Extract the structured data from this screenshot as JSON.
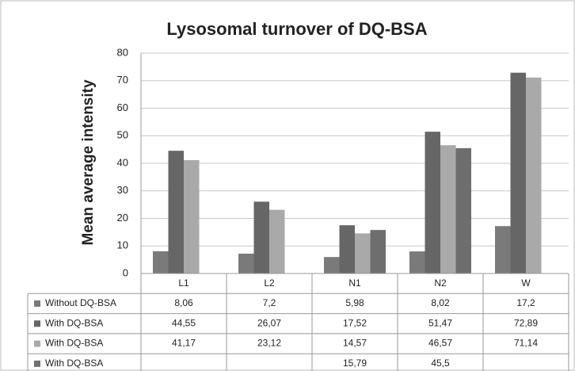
{
  "chart_data": {
    "type": "bar",
    "title": "Lysosomal turnover of DQ-BSA",
    "y_label": "Mean average intensity",
    "categories": [
      "L1",
      "L2",
      "N1",
      "N2",
      "W"
    ],
    "series": [
      {
        "name": "Without DQ-BSA",
        "color": "#7a7a7a",
        "values": [
          8.06,
          7.2,
          5.98,
          8.02,
          17.2
        ],
        "value_labels": [
          "8,06",
          "7,2",
          "5,98",
          "8,02",
          "17,2"
        ]
      },
      {
        "name": "With DQ-BSA",
        "color": "#666666",
        "values": [
          44.55,
          26.07,
          17.52,
          51.47,
          72.89
        ],
        "value_labels": [
          "44,55",
          "26,07",
          "17,52",
          "51,47",
          "72,89"
        ]
      },
      {
        "name": "With DQ-BSA",
        "color": "#a9a9a9",
        "values": [
          41.17,
          23.12,
          14.57,
          46.57,
          71.14
        ],
        "value_labels": [
          "41,17",
          "23,12",
          "14,57",
          "46,57",
          "71,14"
        ]
      },
      {
        "name": "With DQ-BSA",
        "color": "#6e6e6e",
        "values": [
          null,
          null,
          15.79,
          45.5,
          null
        ],
        "value_labels": [
          null,
          null,
          "15,79",
          "45,5",
          null
        ]
      }
    ],
    "ylim": [
      0,
      80
    ],
    "yticks": [
      0,
      10,
      20,
      30,
      40,
      50,
      60,
      70,
      80
    ],
    "grid": true,
    "data_table": true
  }
}
